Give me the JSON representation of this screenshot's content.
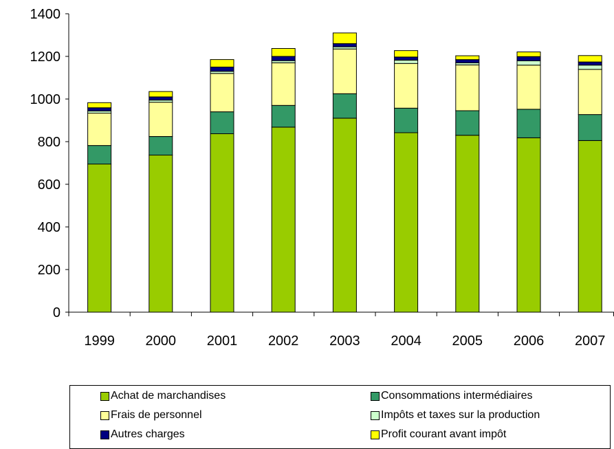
{
  "chart_data": {
    "type": "bar",
    "stacked": true,
    "categories": [
      "1999",
      "2000",
      "2001",
      "2002",
      "2003",
      "2004",
      "2005",
      "2006",
      "2007"
    ],
    "ylim": [
      0,
      1400
    ],
    "yticks": [
      0,
      200,
      400,
      600,
      800,
      1000,
      1200,
      1400
    ],
    "title": "",
    "xlabel": "",
    "ylabel": "",
    "legend_position": "bottom",
    "grid": false,
    "series": [
      {
        "name": "Achat de marchandises",
        "color": "#99cc00",
        "values": [
          695,
          737,
          837,
          868,
          910,
          842,
          830,
          818,
          805
        ]
      },
      {
        "name": "Consommations intermédiaires",
        "color": "#339966",
        "values": [
          87,
          87,
          103,
          102,
          115,
          115,
          115,
          134,
          122
        ]
      },
      {
        "name": "Frais de personnel",
        "color": "#ffff99",
        "values": [
          152,
          161,
          180,
          200,
          210,
          210,
          215,
          207,
          212
        ]
      },
      {
        "name": "Impôts et taxes sur la production",
        "color": "#ccffcc",
        "values": [
          10,
          10,
          10,
          10,
          10,
          15,
          10,
          20,
          20
        ]
      },
      {
        "name": "Autres charges",
        "color": "#000080",
        "values": [
          15,
          15,
          20,
          20,
          15,
          15,
          15,
          20,
          15
        ]
      },
      {
        "name": "Profit courant avant impôt",
        "color": "#ffff00",
        "values": [
          24,
          25,
          35,
          37,
          50,
          30,
          18,
          22,
          30
        ]
      }
    ]
  }
}
